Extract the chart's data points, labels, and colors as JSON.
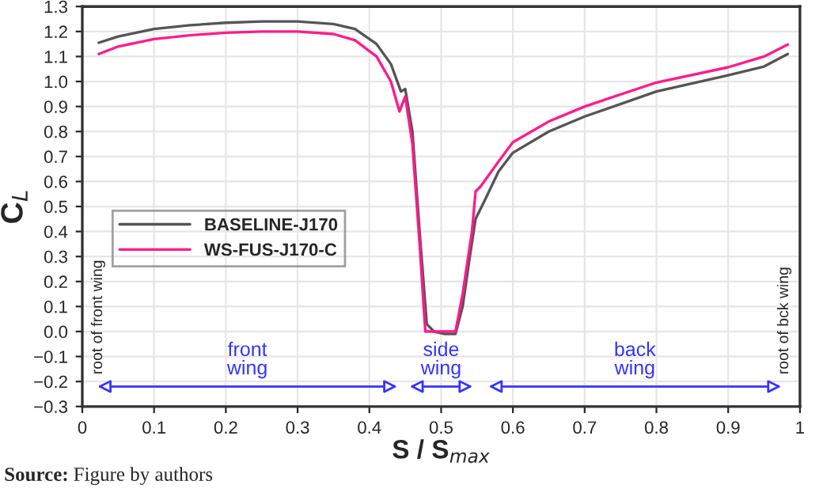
{
  "chart_data": {
    "type": "line",
    "xlabel": "S / S$_{max}$",
    "ylabel": "C$_{L}$",
    "xlim": [
      0,
      1
    ],
    "ylim": [
      -0.3,
      1.3
    ],
    "xticks": [
      {
        "value": 0,
        "label": "0"
      },
      0.1,
      0.2,
      0.3,
      0.4,
      0.5,
      0.6,
      0.7,
      0.8,
      0.9,
      {
        "value": 1,
        "label": "1"
      }
    ],
    "yticks": [
      {
        "value": -0.3,
        "label": "−0.3"
      },
      {
        "value": -0.2,
        "label": "−0.2"
      },
      {
        "value": -0.1,
        "label": "−0.1"
      },
      {
        "value": 0,
        "label": "0.0"
      },
      0.1,
      0.2,
      0.3,
      0.4,
      0.5,
      0.6,
      0.7,
      0.8,
      0.9,
      {
        "value": 1,
        "label": "1.0"
      },
      1.1,
      1.2,
      1.3
    ],
    "grid": true,
    "legend": "left",
    "series": [
      {
        "name": "BASELINE-J170",
        "color": "#555555",
        "x": [
          0.023,
          0.05,
          0.1,
          0.15,
          0.2,
          0.25,
          0.3,
          0.35,
          0.38,
          0.41,
          0.43,
          0.444,
          0.45,
          0.46,
          0.47,
          0.48,
          0.49,
          0.505,
          0.52,
          0.53,
          0.54,
          0.548,
          0.56,
          0.58,
          0.6,
          0.65,
          0.7,
          0.8,
          0.9,
          0.95,
          0.983
        ],
        "values": [
          1.155,
          1.18,
          1.21,
          1.225,
          1.235,
          1.24,
          1.24,
          1.23,
          1.21,
          1.15,
          1.07,
          0.96,
          0.97,
          0.8,
          0.4,
          0.03,
          0.0,
          -0.01,
          -0.01,
          0.1,
          0.3,
          0.45,
          0.52,
          0.64,
          0.715,
          0.8,
          0.86,
          0.96,
          1.025,
          1.06,
          1.11
        ]
      },
      {
        "name": "WS-FUS-J170-C",
        "color": "#ff1a8c",
        "x": [
          0.023,
          0.05,
          0.1,
          0.15,
          0.2,
          0.25,
          0.3,
          0.35,
          0.38,
          0.41,
          0.43,
          0.442,
          0.45,
          0.46,
          0.47,
          0.478,
          0.49,
          0.51,
          0.52,
          0.53,
          0.543,
          0.548,
          0.555,
          0.58,
          0.6,
          0.65,
          0.7,
          0.8,
          0.9,
          0.95,
          0.983
        ],
        "values": [
          1.11,
          1.14,
          1.17,
          1.185,
          1.195,
          1.2,
          1.2,
          1.19,
          1.165,
          1.1,
          1.0,
          0.88,
          0.94,
          0.75,
          0.35,
          0.0,
          0.0,
          0.0,
          0.0,
          0.15,
          0.4,
          0.56,
          0.58,
          0.68,
          0.757,
          0.84,
          0.9,
          0.996,
          1.057,
          1.1,
          1.148
        ]
      }
    ],
    "annotations": [
      "front\nwing",
      "side\nwing",
      "back\nwing",
      "root of front wing",
      "root of bck wing",
      "Source: Figure by authors"
    ]
  }
}
